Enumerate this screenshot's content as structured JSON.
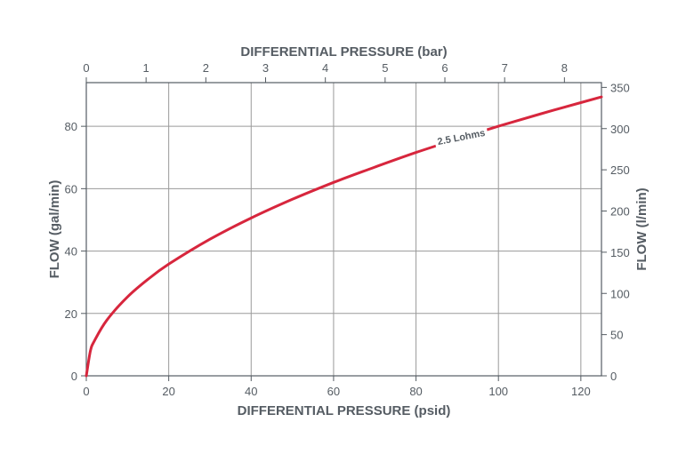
{
  "chart_data": {
    "type": "line",
    "title": "",
    "series": [
      {
        "name": "2.5 Lohms",
        "color": "#d7263d",
        "x": [
          0,
          1,
          2,
          5,
          10,
          15,
          20,
          30,
          40,
          50,
          60,
          70,
          80,
          90,
          100,
          110,
          120,
          125
        ],
        "y": [
          0,
          8.0,
          11.3,
          17.9,
          25.3,
          31.0,
          35.8,
          43.8,
          50.6,
          56.6,
          62.0,
          66.9,
          71.6,
          75.9,
          80.0,
          83.9,
          87.6,
          89.4
        ]
      }
    ],
    "curve_label": "2.5 Lohms",
    "axes": {
      "bottom": {
        "label": "DIFFERENTIAL PRESSURE (psid)",
        "ticks": [
          "0",
          "20",
          "40",
          "60",
          "80",
          "100",
          "120"
        ],
        "tick_values": [
          0,
          20,
          40,
          60,
          80,
          100,
          120
        ],
        "lim": [
          0,
          125
        ]
      },
      "top": {
        "label": "DIFFERENTIAL PRESSURE (bar)",
        "ticks": [
          "0",
          "1",
          "2",
          "3",
          "4",
          "5",
          "6",
          "7",
          "8"
        ],
        "tick_values": [
          0,
          1,
          2,
          3,
          4,
          5,
          6,
          7,
          8
        ],
        "lim": [
          0,
          8.62
        ]
      },
      "left": {
        "label": "FLOW (gal/min)",
        "ticks": [
          "0",
          "20",
          "40",
          "60",
          "80"
        ],
        "tick_values": [
          0,
          20,
          40,
          60,
          80
        ],
        "lim": [
          0,
          94
        ]
      },
      "right": {
        "label": "FLOW (l/min)",
        "ticks": [
          "0",
          "50",
          "100",
          "150",
          "200",
          "250",
          "300",
          "350"
        ],
        "tick_values": [
          0,
          50,
          100,
          150,
          200,
          250,
          300,
          350
        ],
        "lim": [
          0,
          355.8
        ]
      }
    },
    "grid": true,
    "colors": {
      "curve": "#d7263d",
      "grid": "#9a9a9a",
      "axis": "#555c63",
      "text": "#555c63"
    }
  }
}
